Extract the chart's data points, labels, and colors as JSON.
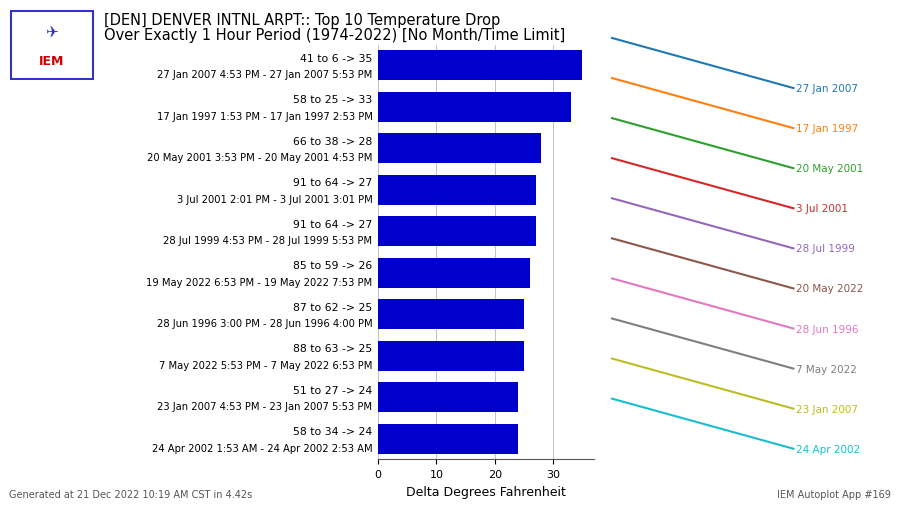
{
  "title_line1": "[DEN] DENVER INTNL ARPT:: Top 10 Temperature Drop",
  "title_line2": "Over Exactly 1 Hour Period (1974-2022) [No Month/Time Limit]",
  "bars": [
    {
      "label_top": "41 to 6 -> 35",
      "label_bot": "27 Jan 2007 4:53 PM - 27 Jan 2007 5:53 PM",
      "value": 35,
      "date_short": "27 Jan 2007"
    },
    {
      "label_top": "58 to 25 -> 33",
      "label_bot": "17 Jan 1997 1:53 PM - 17 Jan 1997 2:53 PM",
      "value": 33,
      "date_short": "17 Jan 1997"
    },
    {
      "label_top": "66 to 38 -> 28",
      "label_bot": "20 May 2001 3:53 PM - 20 May 2001 4:53 PM",
      "value": 28,
      "date_short": "20 May 2001"
    },
    {
      "label_top": "91 to 64 -> 27",
      "label_bot": "3 Jul 2001 2:01 PM - 3 Jul 2001 3:01 PM",
      "value": 27,
      "date_short": "3 Jul 2001"
    },
    {
      "label_top": "91 to 64 -> 27",
      "label_bot": "28 Jul 1999 4:53 PM - 28 Jul 1999 5:53 PM",
      "value": 27,
      "date_short": "28 Jul 1999"
    },
    {
      "label_top": "85 to 59 -> 26",
      "label_bot": "19 May 2022 6:53 PM - 19 May 2022 7:53 PM",
      "value": 26,
      "date_short": "20 May 2022"
    },
    {
      "label_top": "87 to 62 -> 25",
      "label_bot": "28 Jun 1996 3:00 PM - 28 Jun 1996 4:00 PM",
      "value": 25,
      "date_short": "28 Jun 1996"
    },
    {
      "label_top": "88 to 63 -> 25",
      "label_bot": "7 May 2022 5:53 PM - 7 May 2022 6:53 PM",
      "value": 25,
      "date_short": "7 May 2022"
    },
    {
      "label_top": "51 to 27 -> 24",
      "label_bot": "23 Jan 2007 4:53 PM - 23 Jan 2007 5:53 PM",
      "value": 24,
      "date_short": "23 Jan 2007"
    },
    {
      "label_top": "58 to 34 -> 24",
      "label_bot": "24 Apr 2002 1:53 AM - 24 Apr 2002 2:53 AM",
      "value": 24,
      "date_short": "24 Apr 2002"
    }
  ],
  "bar_color": "#0000cc",
  "xlabel": "Delta Degrees Fahrenheit",
  "xlim": [
    0,
    37
  ],
  "xticks": [
    0,
    10,
    20,
    30
  ],
  "footer": "Generated at 21 Dec 2022 10:19 AM CST in 4.42s",
  "footer_right": "IEM Autoplot App #169",
  "line_colors": [
    "#1f77b4",
    "#ff7f0e",
    "#2ca02c",
    "#d62728",
    "#9467bd",
    "#8c564b",
    "#e377c2",
    "#7f7f7f",
    "#bcbd22",
    "#17becf"
  ],
  "bg_color": "#ffffff"
}
